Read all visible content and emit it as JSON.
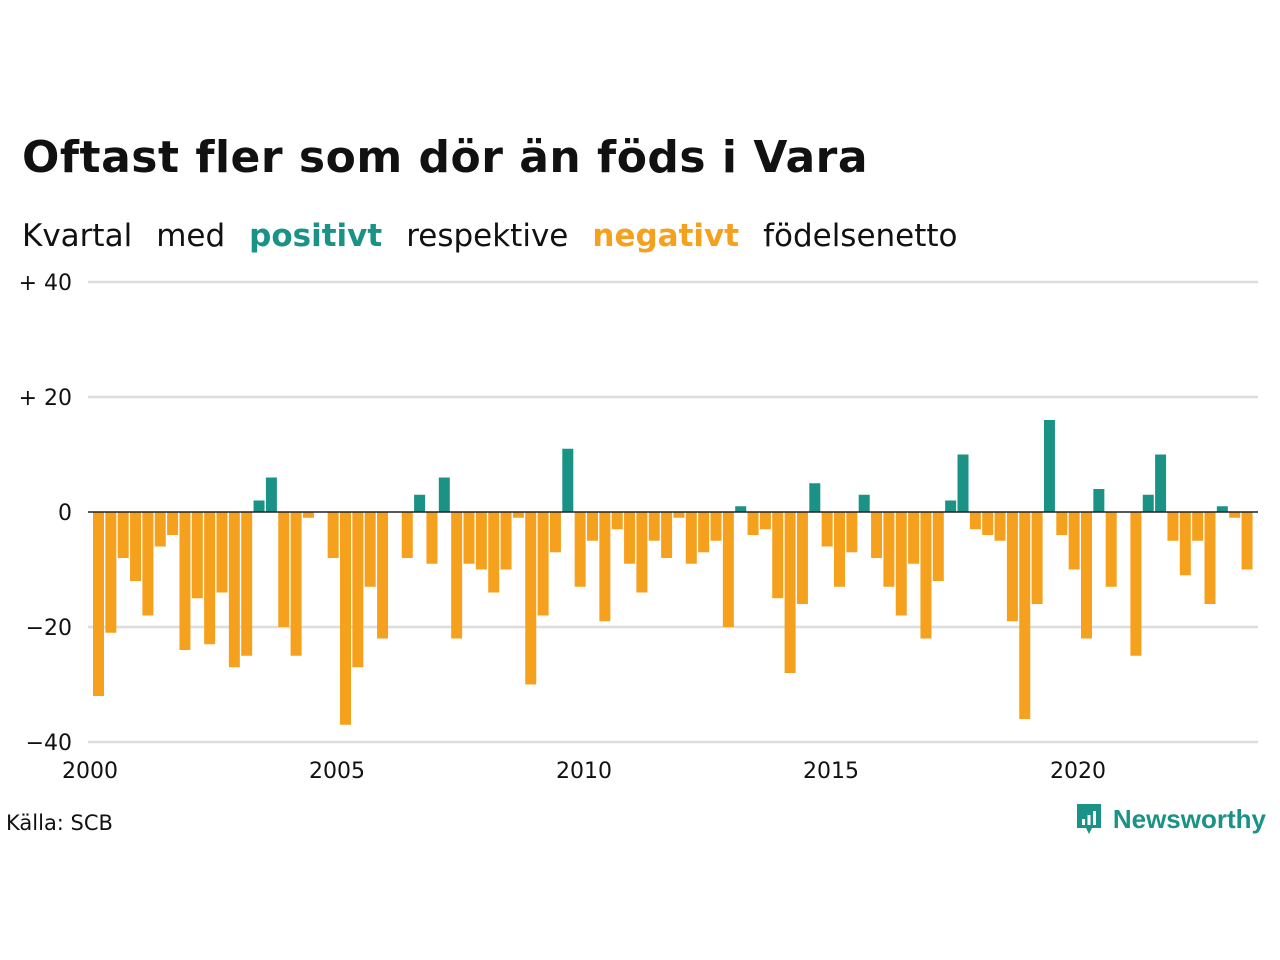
{
  "title": "Oftast fler som dör än föds i Vara",
  "subtitle": {
    "w1": "Kvartal",
    "w2": "med",
    "w3": "positivt",
    "w4": "respektive",
    "w5": "negativt",
    "w6": "födelsenetto"
  },
  "colors": {
    "positive": "#1a9286",
    "negative": "#f5a11e",
    "grid": "#dddddd",
    "zero": "#222222"
  },
  "source": "Källa: SCB",
  "brand": "Newsworthy",
  "chart_data": {
    "type": "bar",
    "x_start": "2000 Q1",
    "x_ticks": [
      "2000",
      "2005",
      "2010",
      "2015",
      "2020"
    ],
    "y_ticks": [
      {
        "value": 40,
        "label": "+ 40"
      },
      {
        "value": 20,
        "label": "+ 20"
      },
      {
        "value": 0,
        "label": "0"
      },
      {
        "value": -20,
        "label": "−20"
      },
      {
        "value": -40,
        "label": "−40"
      }
    ],
    "ylim": [
      -40,
      40
    ],
    "grid": true,
    "values": [
      -32,
      -21,
      -8,
      -12,
      -18,
      -6,
      -4,
      -24,
      -15,
      -23,
      -14,
      -27,
      -25,
      2,
      6,
      -20,
      -25,
      -1,
      0,
      -8,
      -37,
      -27,
      -13,
      -22,
      0,
      -8,
      3,
      -9,
      6,
      -22,
      -9,
      -10,
      -14,
      -10,
      -1,
      -30,
      -18,
      -7,
      11,
      -13,
      -5,
      -19,
      -3,
      -9,
      -14,
      -5,
      -8,
      -1,
      -9,
      -7,
      -5,
      -20,
      1,
      -4,
      -3,
      -15,
      -28,
      -16,
      5,
      -6,
      -13,
      -7,
      3,
      -8,
      -13,
      -18,
      -9,
      -22,
      -12,
      2,
      10,
      -3,
      -4,
      -5,
      -19,
      -36,
      -16,
      16,
      -4,
      -10,
      -22,
      4,
      -13,
      0,
      -25,
      3,
      10,
      -5,
      -11,
      -5,
      -16,
      1,
      -1,
      -10
    ]
  }
}
